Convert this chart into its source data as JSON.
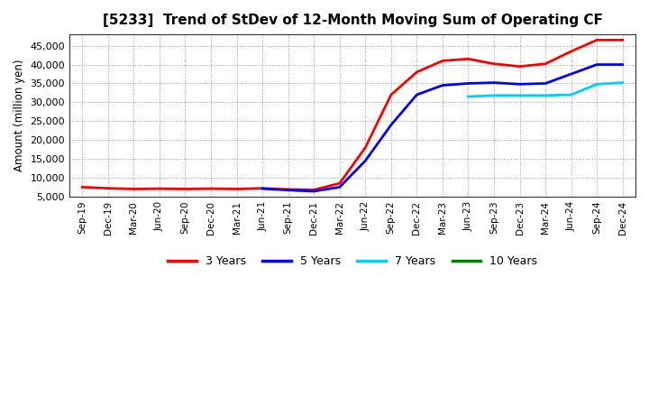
{
  "title": "[5233]  Trend of StDev of 12-Month Moving Sum of Operating CF",
  "ylabel": "Amount (million yen)",
  "x_labels": [
    "Sep-19",
    "Dec-19",
    "Mar-20",
    "Jun-20",
    "Sep-20",
    "Dec-20",
    "Mar-21",
    "Jun-21",
    "Sep-21",
    "Dec-21",
    "Mar-22",
    "Jun-22",
    "Sep-22",
    "Dec-22",
    "Mar-23",
    "Jun-23",
    "Sep-23",
    "Dec-23",
    "Mar-24",
    "Jun-24",
    "Sep-24",
    "Dec-24"
  ],
  "ylim": [
    5000,
    48000
  ],
  "yticks": [
    5000,
    10000,
    15000,
    20000,
    25000,
    30000,
    35000,
    40000,
    45000
  ],
  "series": {
    "3 Years": {
      "color": "#ff0000",
      "x": [
        0,
        1,
        2,
        3,
        4,
        5,
        6,
        7,
        8,
        9,
        10,
        11,
        12,
        13,
        14,
        15,
        16,
        17,
        18,
        19,
        20,
        21
      ],
      "y": [
        7500,
        7200,
        7000,
        7100,
        7000,
        7100,
        7000,
        7200,
        6900,
        6800,
        8500,
        18000,
        32000,
        38000,
        41000,
        41500,
        40200,
        39500,
        40200,
        43500,
        46500,
        46500
      ]
    },
    "5 Years": {
      "color": "#0000ff",
      "x": [
        7,
        8,
        9,
        10,
        11,
        12,
        13,
        14,
        15,
        16,
        17,
        18,
        19,
        20,
        21
      ],
      "y": [
        7100,
        6700,
        6400,
        7500,
        14500,
        24000,
        32000,
        34500,
        35000,
        35200,
        34800,
        35000,
        37500,
        40000,
        40000
      ]
    },
    "7 Years": {
      "color": "#00ccff",
      "x": [
        15,
        16,
        17,
        18,
        19,
        20,
        21
      ],
      "y": [
        31500,
        31800,
        31800,
        31800,
        32000,
        34800,
        35200
      ]
    },
    "10 Years": {
      "color": "#008000",
      "x": [],
      "y": []
    }
  },
  "background_color": "#ffffff",
  "plot_bg_color": "#ffffff",
  "grid_color": "#999999",
  "legend_labels": [
    "3 Years",
    "5 Years",
    "7 Years",
    "10 Years"
  ],
  "legend_colors": [
    "#ff0000",
    "#0000ff",
    "#00ccff",
    "#008000"
  ],
  "title_fontsize": 11,
  "ylabel_fontsize": 8.5,
  "xtick_fontsize": 7.5,
  "ytick_fontsize": 8
}
